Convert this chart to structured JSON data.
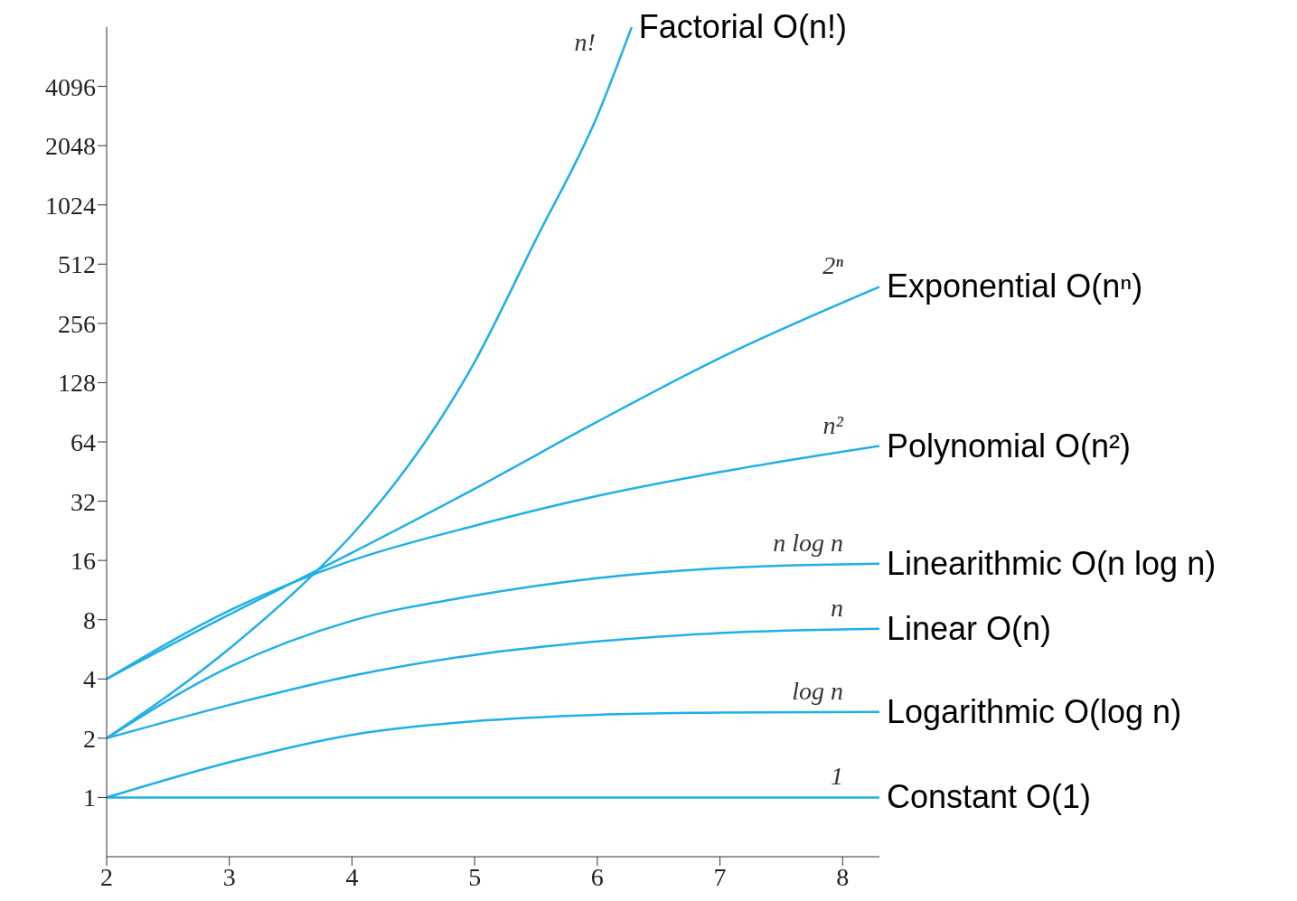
{
  "chart_data": {
    "type": "line",
    "log": "y",
    "grid": false,
    "legend": false,
    "marker": "none",
    "line_style": "solid",
    "xlim": [
      2,
      8.3
    ],
    "xticks": [
      2,
      3,
      4,
      5,
      6,
      7,
      8
    ],
    "ylim": [
      0.5,
      8192
    ],
    "yticks": [
      1,
      2,
      4,
      8,
      16,
      32,
      64,
      128,
      256,
      512,
      1024,
      2048,
      4096
    ],
    "series": [
      {
        "name": "Factorial O(n!)",
        "color": "#1fb0e6",
        "x": [
          2,
          3,
          3.75,
          4,
          5,
          5.5,
          6,
          6.28
        ],
        "values": [
          2,
          5.7,
          14.9,
          21.6,
          163,
          684,
          2900,
          8192
        ]
      },
      {
        "name": "Exponential O(nⁿ)",
        "color": "#1fb0e6",
        "x": [
          2,
          3,
          4,
          5,
          6,
          7,
          8.3
        ],
        "values": [
          4,
          8.5,
          17.5,
          37,
          81,
          171,
          393
        ]
      },
      {
        "name": "Polynomial O(n²)",
        "color": "#1fb0e6",
        "x": [
          2,
          3,
          4,
          5,
          6,
          7,
          8.3
        ],
        "values": [
          4,
          8.9,
          16,
          24,
          34,
          45,
          61
        ]
      },
      {
        "name": "Linearithmic O(n log n)",
        "color": "#1fb0e6",
        "x": [
          2,
          3,
          4,
          5,
          6,
          7,
          8.3
        ],
        "values": [
          2,
          4.6,
          7.9,
          10.6,
          13,
          14.6,
          15.4
        ]
      },
      {
        "name": "Linear O(n)",
        "color": "#1fb0e6",
        "x": [
          2,
          3,
          4,
          5,
          6,
          7,
          8.3
        ],
        "values": [
          2,
          2.95,
          4.15,
          5.3,
          6.2,
          6.85,
          7.2
        ]
      },
      {
        "name": "Logarithmic   O(log n)",
        "color": "#1fb0e6",
        "x": [
          2,
          3,
          4,
          5,
          6,
          7,
          8.3
        ],
        "values": [
          1,
          1.51,
          2.08,
          2.44,
          2.63,
          2.7,
          2.72
        ]
      },
      {
        "name": "Constant   O(1)",
        "color": "#1fb0e6",
        "x": [
          2,
          3,
          4,
          5,
          6,
          7,
          8.3
        ],
        "values": [
          1,
          1,
          1,
          1,
          1,
          1,
          1
        ]
      }
    ],
    "annotations": [
      "n!",
      "2ⁿ",
      "n²",
      "n log n",
      "n",
      "log n",
      "1"
    ]
  }
}
